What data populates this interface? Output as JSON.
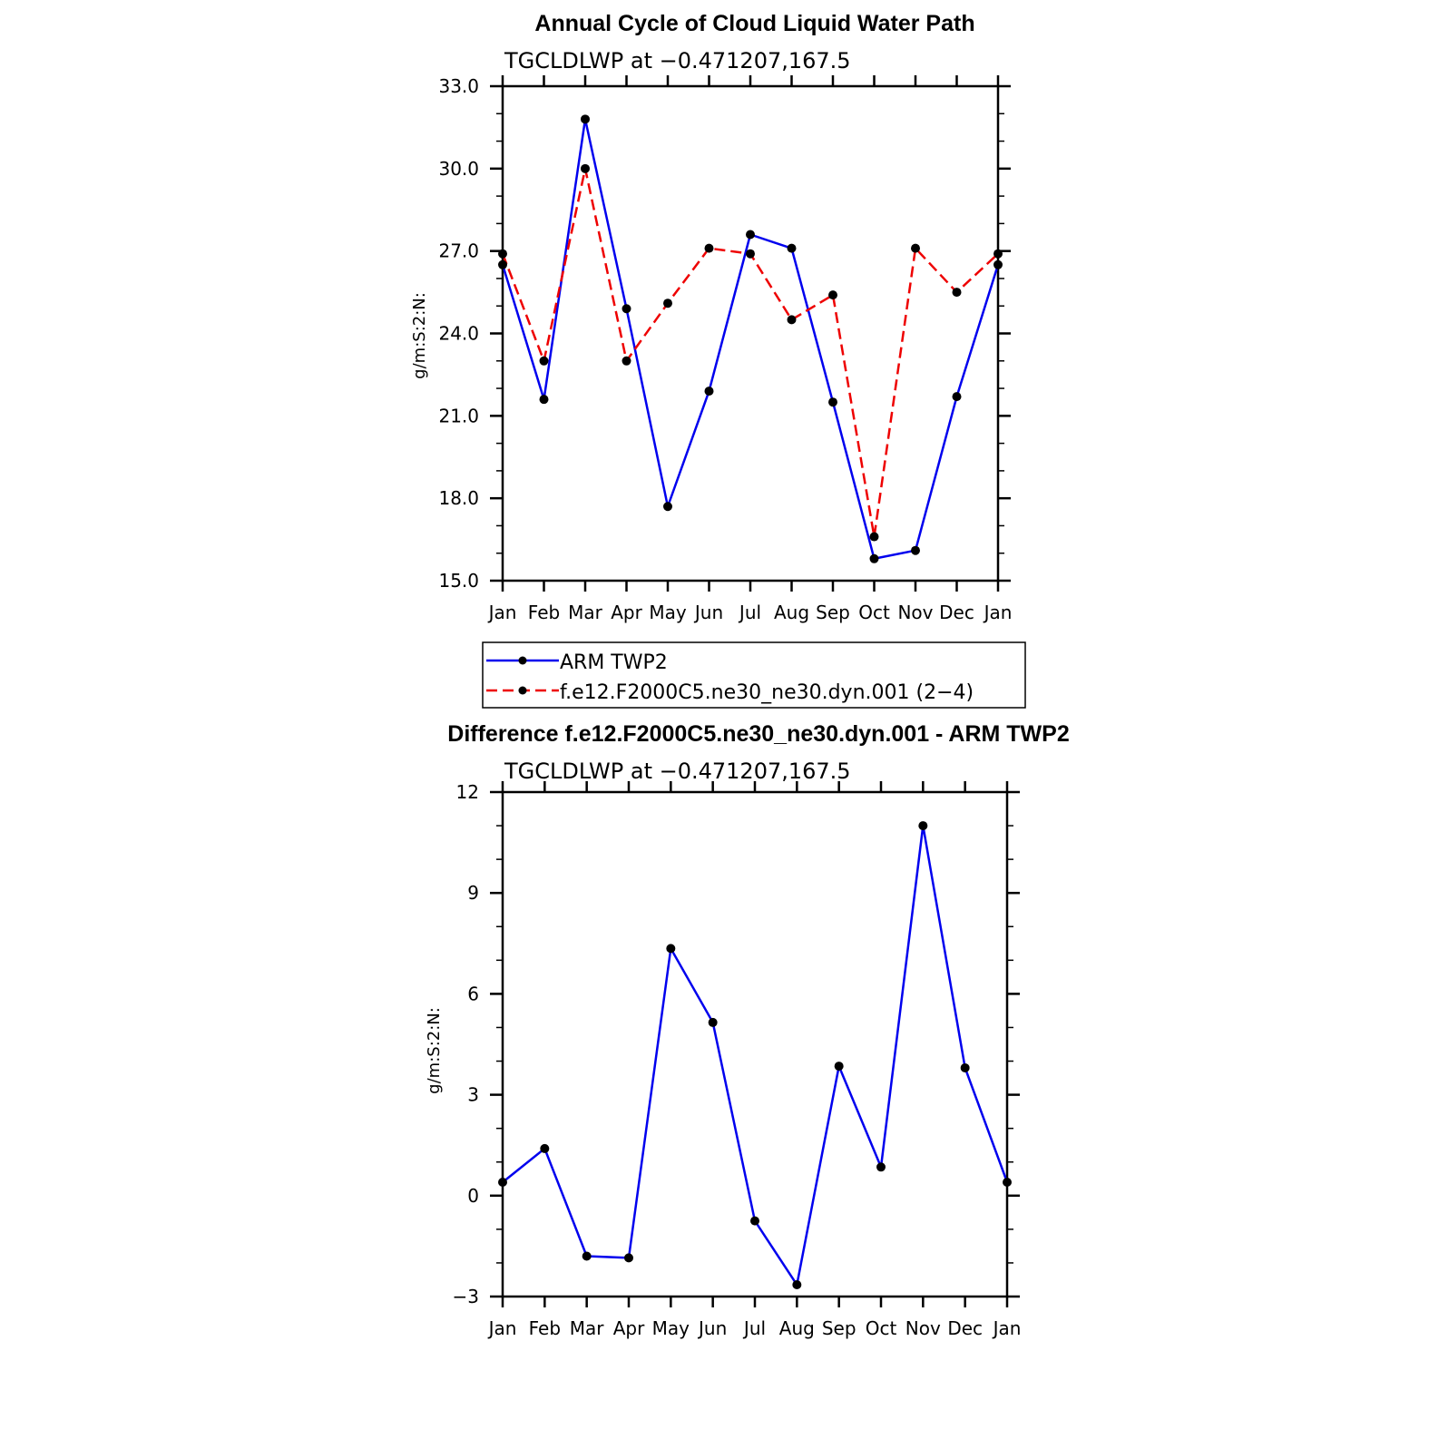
{
  "chart_data": [
    {
      "type": "line",
      "title": "Annual Cycle of Cloud Liquid Water Path",
      "subtitle": "TGCLDLWP  at  −0.471207,167.5",
      "ylabel": "g/m:S:2:N:",
      "ylim": [
        15.0,
        33.0
      ],
      "yticks": [
        "15.0",
        "18.0",
        "21.0",
        "24.0",
        "27.0",
        "30.0",
        "33.0"
      ],
      "ytick_values": [
        15,
        18,
        21,
        24,
        27,
        30,
        33
      ],
      "categories": [
        "Jan",
        "Feb",
        "Mar",
        "Apr",
        "May",
        "Jun",
        "Jul",
        "Aug",
        "Sep",
        "Oct",
        "Nov",
        "Dec",
        "Jan"
      ],
      "series": [
        {
          "name": "ARM  TWP2",
          "color": "#0000ee",
          "dash": "solid",
          "values": [
            26.5,
            21.6,
            31.8,
            24.9,
            17.7,
            21.9,
            27.6,
            27.1,
            21.5,
            15.8,
            16.1,
            21.7,
            26.5
          ]
        },
        {
          "name": "f.e12.F2000C5.ne30_ne30.dyn.001  (2−4)",
          "color": "#ee0000",
          "dash": "dashed",
          "values": [
            26.9,
            23.0,
            30.0,
            23.0,
            25.1,
            27.1,
            26.9,
            24.5,
            25.4,
            16.6,
            27.1,
            25.5,
            26.9
          ]
        }
      ],
      "legend": "below"
    },
    {
      "type": "line",
      "title": "Difference f.e12.F2000C5.ne30_ne30.dyn.001 - ARM TWP2",
      "subtitle": "TGCLDLWP  at  −0.471207,167.5",
      "ylabel": "g/m:S:2:N:",
      "ylim": [
        -3,
        12
      ],
      "yticks": [
        "−3",
        "0",
        "3",
        "6",
        "9",
        "12"
      ],
      "ytick_values": [
        -3,
        0,
        3,
        6,
        9,
        12
      ],
      "categories": [
        "Jan",
        "Feb",
        "Mar",
        "Apr",
        "May",
        "Jun",
        "Jul",
        "Aug",
        "Sep",
        "Oct",
        "Nov",
        "Dec",
        "Jan"
      ],
      "series": [
        {
          "color": "#0000ee",
          "dash": "solid",
          "values": [
            0.4,
            1.4,
            -1.8,
            -1.85,
            7.35,
            5.15,
            -0.75,
            -2.65,
            3.85,
            0.85,
            11.0,
            3.8,
            0.4
          ]
        }
      ]
    }
  ]
}
